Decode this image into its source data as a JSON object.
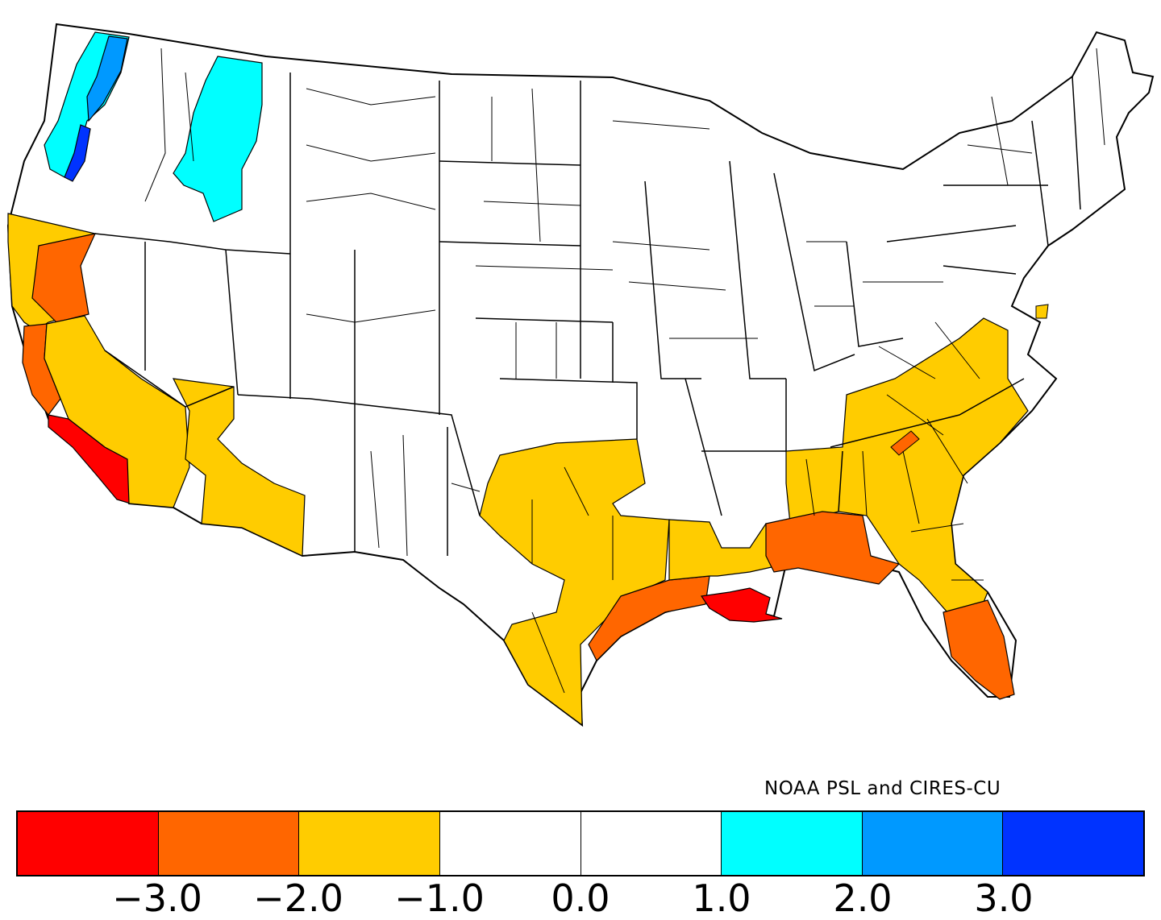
{
  "credit": "NOAA PSL and CIRES-CU",
  "legend": {
    "bins": [
      {
        "color": "#ff0000"
      },
      {
        "color": "#ff6600"
      },
      {
        "color": "#ffcc00"
      },
      {
        "color": "#ffffff"
      },
      {
        "color": "#ffffff"
      },
      {
        "color": "#00ffff"
      },
      {
        "color": "#0099ff"
      },
      {
        "color": "#0033ff"
      }
    ],
    "tick_labels": [
      "−3.0",
      "−2.0",
      "−1.0",
      "0.0",
      "1.0",
      "2.0",
      "3.0"
    ]
  },
  "regions": [
    {
      "name": "pacific-northwest-coast",
      "color": "#00ffff"
    },
    {
      "name": "washington-cascades",
      "color": "#0099ff"
    },
    {
      "name": "oregon-cascades",
      "color": "#0033ff"
    },
    {
      "name": "northern-idaho-montana",
      "color": "#00ffff"
    },
    {
      "name": "northern-california-coast",
      "color": "#ffcc00"
    },
    {
      "name": "northern-california-interior",
      "color": "#ff6600"
    },
    {
      "name": "central-california-coast",
      "color": "#ff6600"
    },
    {
      "name": "southern-california-coast",
      "color": "#ff0000"
    },
    {
      "name": "california-central-valley",
      "color": "#ffcc00"
    },
    {
      "name": "arizona-nevada",
      "color": "#ffcc00"
    },
    {
      "name": "texas-oklahoma",
      "color": "#ffcc00"
    },
    {
      "name": "texas-gulf-coast",
      "color": "#ff6600"
    },
    {
      "name": "louisiana-coast",
      "color": "#ff0000"
    },
    {
      "name": "lower-mississippi-valley",
      "color": "#ffcc00"
    },
    {
      "name": "southeast",
      "color": "#ffcc00"
    },
    {
      "name": "florida-panhandle-gulf-coast",
      "color": "#ff6600"
    },
    {
      "name": "south-florida",
      "color": "#ff6600"
    },
    {
      "name": "appalachian-pocket",
      "color": "#ff6600"
    },
    {
      "name": "delmarva",
      "color": "#ffcc00"
    }
  ]
}
